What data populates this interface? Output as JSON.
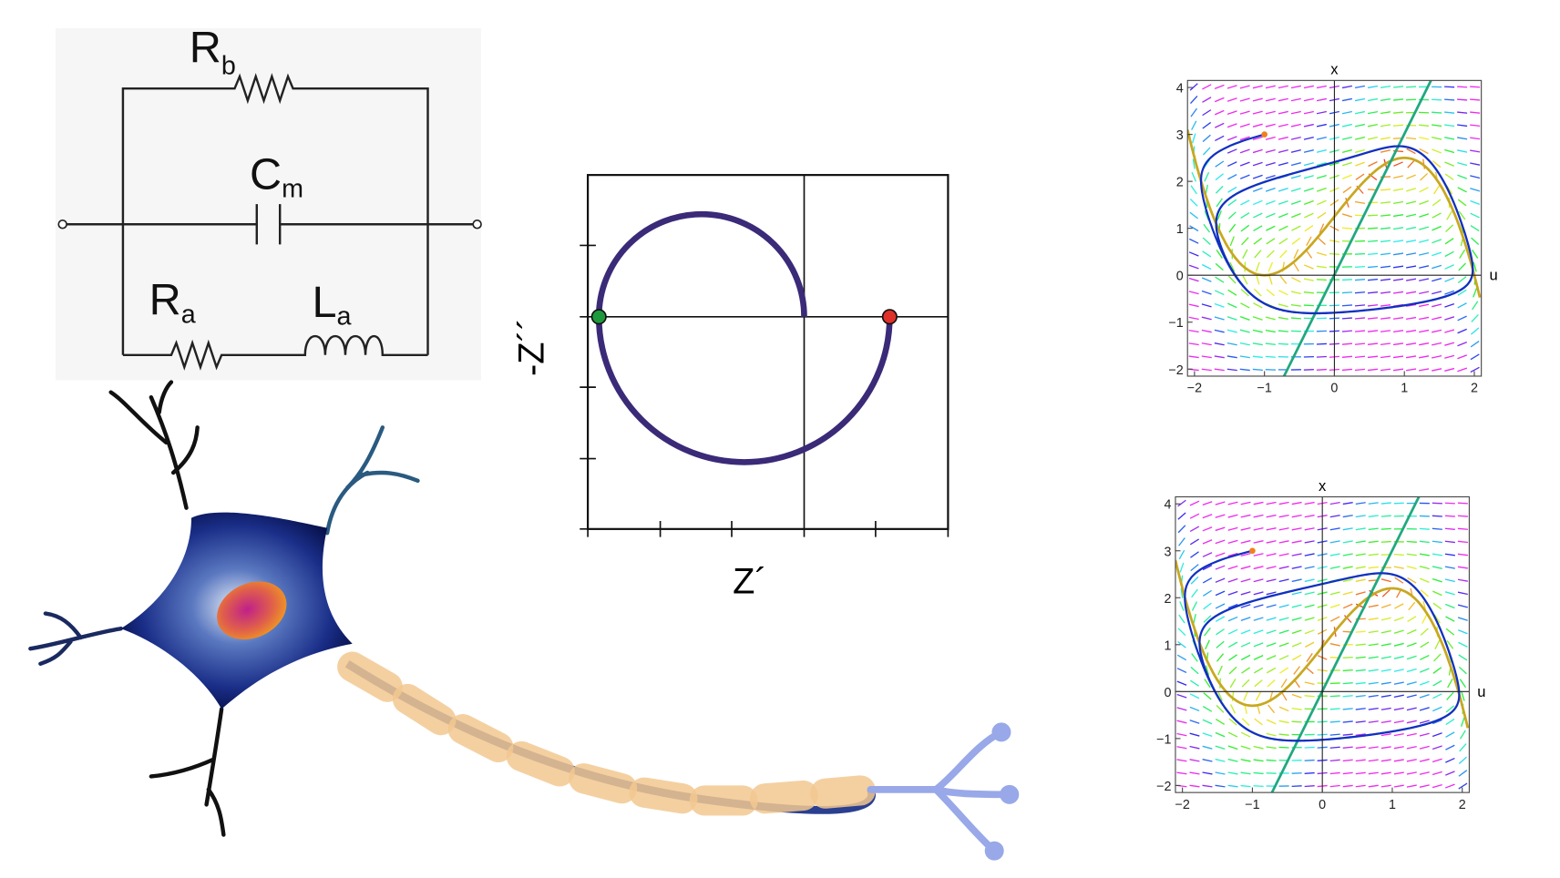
{
  "circuit": {
    "labels": [
      {
        "symbol": "R",
        "subscript": "b"
      },
      {
        "symbol": "C",
        "subscript": "m"
      },
      {
        "symbol": "R",
        "subscript": "a"
      },
      {
        "symbol": "L",
        "subscript": "a"
      }
    ]
  },
  "nyquist": {
    "y_label": "-Z´´",
    "x_label": "Z´"
  },
  "phase_portraits": [
    {
      "y_label": "x",
      "x_label": "u",
      "xlim": [
        -2.1,
        2.1
      ],
      "ylim": [
        -2.15,
        4.15
      ],
      "xticks": [
        {
          "value": -2,
          "label": "−2"
        },
        {
          "value": -1,
          "label": "−1"
        },
        0,
        1,
        2
      ],
      "yticks": [
        {
          "value": -2,
          "label": "−2"
        },
        {
          "value": -1,
          "label": "−1"
        },
        0,
        1,
        2,
        3,
        4
      ]
    },
    {
      "y_label": "x",
      "x_label": "u",
      "xlim": [
        -2.1,
        2.1
      ],
      "ylim": [
        -2.15,
        4.15
      ],
      "xticks": [
        {
          "value": -2,
          "label": "−2"
        },
        {
          "value": -1,
          "label": "−1"
        },
        0,
        1,
        2
      ],
      "yticks": [
        {
          "value": -2,
          "label": "−2"
        },
        {
          "value": -1,
          "label": "−1"
        },
        0,
        1,
        2,
        3,
        4
      ]
    }
  ]
}
